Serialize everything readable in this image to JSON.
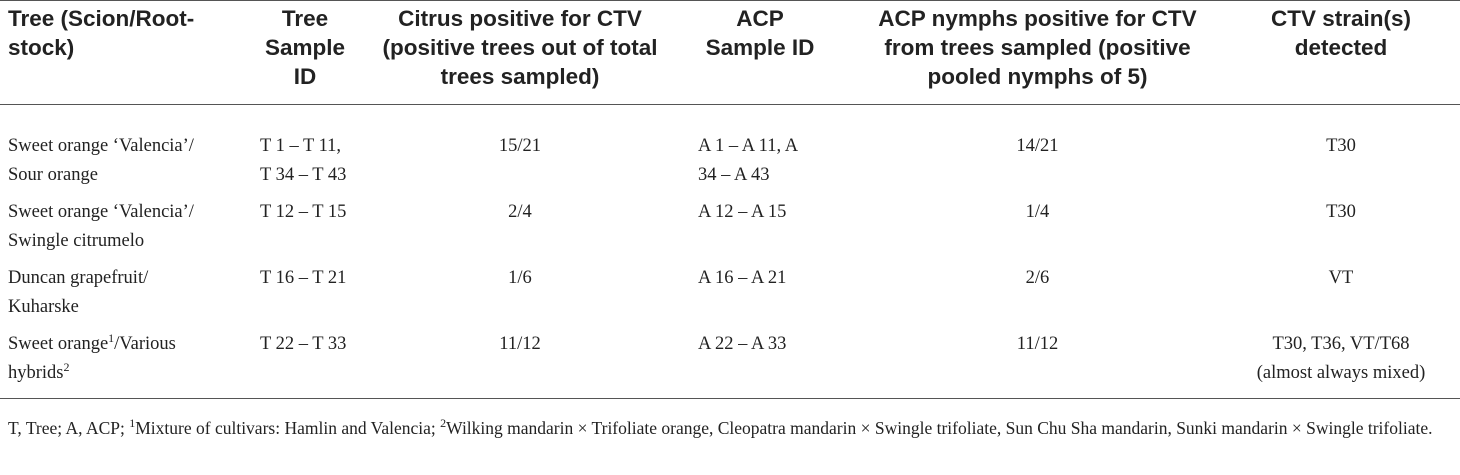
{
  "table": {
    "headers": [
      {
        "key": "tree",
        "lines": [
          "Tree (Scion/Root-",
          "stock)"
        ]
      },
      {
        "key": "tree_sample_id",
        "lines": [
          "Tree",
          "Sample",
          "ID"
        ]
      },
      {
        "key": "citrus_positive",
        "lines": [
          "Citrus positive for CTV",
          "(positive trees out of total",
          "trees sampled)"
        ]
      },
      {
        "key": "acp_sample_id",
        "lines": [
          "ACP",
          "Sample ID"
        ]
      },
      {
        "key": "acp_positive",
        "lines": [
          "ACP nymphs positive for CTV",
          "from trees sampled (positive",
          "pooled nymphs of 5)"
        ]
      },
      {
        "key": "ctv_strains",
        "lines": [
          "CTV strain(s)",
          "detected"
        ]
      }
    ],
    "rows": [
      {
        "tree_lines": [
          "Sweet orange ‘Valencia’/",
          "Sour orange"
        ],
        "tree_sample_id_lines": [
          "T 1 – T 11,",
          "T 34 – T 43"
        ],
        "citrus_positive": "15/21",
        "acp_sample_id_lines": [
          "A 1 – A 11, A",
          "34 – A 43"
        ],
        "acp_positive": "14/21",
        "ctv_strains_lines": [
          "T30"
        ]
      },
      {
        "tree_lines": [
          "Sweet orange ‘Valencia’/",
          "Swingle citrumelo"
        ],
        "tree_sample_id_lines": [
          "T 12 – T 15"
        ],
        "citrus_positive": "2/4",
        "acp_sample_id_lines": [
          "A 12 – A 15"
        ],
        "acp_positive": "1/4",
        "ctv_strains_lines": [
          "T30"
        ]
      },
      {
        "tree_lines": [
          "Duncan grapefruit/",
          "Kuharske"
        ],
        "tree_sample_id_lines": [
          "T 16 – T 21"
        ],
        "citrus_positive": "1/6",
        "acp_sample_id_lines": [
          "A 16 – A 21"
        ],
        "acp_positive": "2/6",
        "ctv_strains_lines": [
          "VT"
        ]
      },
      {
        "tree_line1_text": "Sweet orange",
        "tree_line1_sup": "1",
        "tree_line1_tail": "/Various",
        "tree_line2_text": "hybrids",
        "tree_line2_sup": "2",
        "tree_sample_id_lines": [
          "T 22 – T 33"
        ],
        "citrus_positive": "11/12",
        "acp_sample_id_lines": [
          "A 22 – A 33"
        ],
        "acp_positive": "11/12",
        "ctv_strains_lines": [
          "T30, T36, VT/T68",
          "(almost always mixed)"
        ]
      }
    ]
  },
  "footnote": {
    "prefix": "T, Tree; A, ACP; ",
    "sup1": "1",
    "note1": "Mixture of cultivars: Hamlin and Valencia; ",
    "sup2": "2",
    "note2": "Wilking mandarin × Trifoliate orange, Cleopatra mandarin × Swingle trifoliate, Sun Chu Sha mandarin, Sunki mandarin × Swingle trifoliate."
  }
}
